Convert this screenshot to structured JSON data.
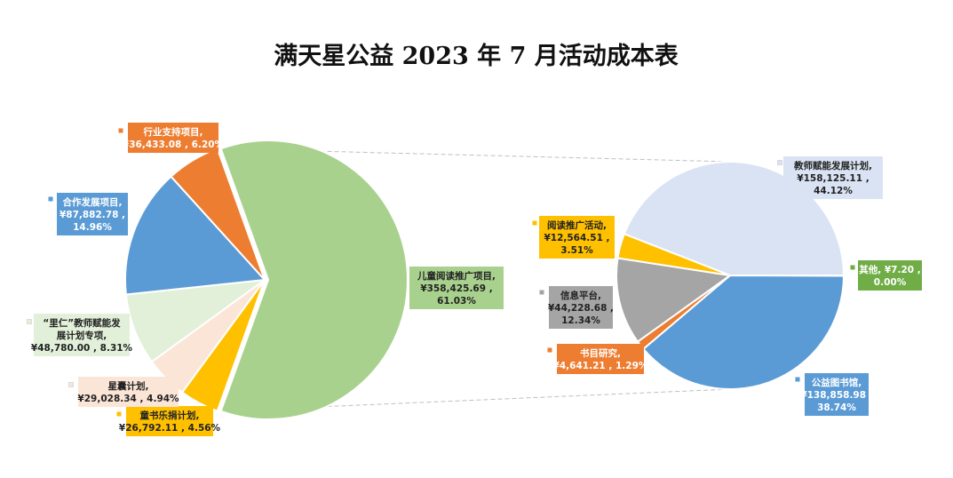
{
  "chart_data": {
    "type": "pie",
    "title": "满天星公益 2023 年 7 月活动成本表",
    "main_pie": {
      "slices": [
        {
          "label": "儿童阅读推广项目",
          "value_text": "¥358,425.69",
          "percent_text": "61.03%",
          "value": 358425.69,
          "percent": 61.03,
          "color": "#a9d18e",
          "text_color": "#222222"
        },
        {
          "label": "童书乐捐计划",
          "value_text": "¥26,792.11",
          "percent_text": "4.56%",
          "value": 26792.11,
          "percent": 4.56,
          "color": "#ffc000",
          "text_color": "#222222"
        },
        {
          "label": "星囊计划",
          "value_text": "¥29,028.34",
          "percent_text": "4.94%",
          "value": 29028.34,
          "percent": 4.94,
          "color": "#fbe5d6",
          "text_color": "#222222"
        },
        {
          "label": "“里仁”教师赋能发展计划专项",
          "value_text": "¥48,780.00",
          "percent_text": "8.31%",
          "value": 48780.0,
          "percent": 8.31,
          "color": "#e2f0d9",
          "text_color": "#222222"
        },
        {
          "label": "合作发展项目",
          "value_text": "¥87,882.78",
          "percent_text": "14.96%",
          "value": 87882.78,
          "percent": 14.96,
          "color": "#5b9bd5",
          "text_color": "#ffffff"
        },
        {
          "label": "行业支持项目",
          "value_text": "¥36,433.08",
          "percent_text": "6.20%",
          "value": 36433.08,
          "percent": 6.2,
          "color": "#ed7d31",
          "text_color": "#ffffff"
        }
      ]
    },
    "breakdown_pie": {
      "source": "儿童阅读推广项目",
      "slices": [
        {
          "label": "教师赋能发展计划",
          "value_text": "¥158,125.11",
          "percent_text": "44.12%",
          "value": 158125.11,
          "percent": 44.12,
          "color": "#dae3f3",
          "text_color": "#222222"
        },
        {
          "label": "其他",
          "value_text": "¥7.20",
          "percent_text": "0.00%",
          "value": 7.2,
          "percent": 0.0,
          "color": "#70ad47",
          "text_color": "#ffffff"
        },
        {
          "label": "公益图书馆",
          "value_text": "¥138,858.98",
          "percent_text": "38.74%",
          "value": 138858.98,
          "percent": 38.74,
          "color": "#5b9bd5",
          "text_color": "#ffffff"
        },
        {
          "label": "书目研究",
          "value_text": "¥4,641.21",
          "percent_text": "1.29%",
          "value": 4641.21,
          "percent": 1.29,
          "color": "#ed7d31",
          "text_color": "#ffffff"
        },
        {
          "label": "信息平台",
          "value_text": "¥44,228.68",
          "percent_text": "12.34%",
          "value": 44228.68,
          "percent": 12.34,
          "color": "#a5a5a5",
          "text_color": "#222222"
        },
        {
          "label": "阅读推广活动",
          "value_text": "¥12,564.51",
          "percent_text": "3.51%",
          "value": 12564.51,
          "percent": 3.51,
          "color": "#ffc000",
          "text_color": "#222222"
        }
      ]
    }
  }
}
